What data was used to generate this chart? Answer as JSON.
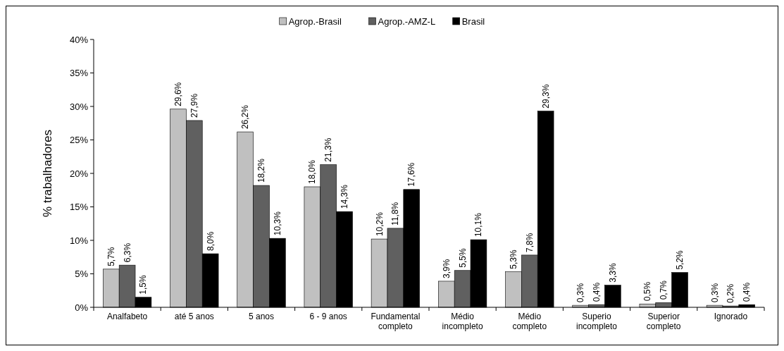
{
  "chart_data": {
    "type": "bar",
    "ylabel": "% trabalhadores",
    "categories": [
      "Analfabeto",
      "até 5 anos",
      "5 anos",
      "6 - 9 anos",
      "Fundamental completo",
      "Médio incompleto",
      "Médio completo",
      "Superio incompleto",
      "Superior completo",
      "Ignorado"
    ],
    "series": [
      {
        "name": "Agrop.-Brasil",
        "color": "#c0c0c0",
        "values": [
          5.7,
          29.6,
          26.2,
          18.0,
          10.2,
          3.9,
          5.3,
          0.3,
          0.5,
          0.3
        ],
        "value_labels": [
          "5,7%",
          "29,6%",
          "26,2%",
          "18,0%",
          "10,2%",
          "3,9%",
          "5,3%",
          "0,3%",
          "0,5%",
          "0,3%"
        ]
      },
      {
        "name": "Agrop.-AMZ-L",
        "color": "#606060",
        "values": [
          6.3,
          27.9,
          18.2,
          21.3,
          11.8,
          5.5,
          7.8,
          0.4,
          0.7,
          0.2
        ],
        "value_labels": [
          "6,3%",
          "27,9%",
          "18,2%",
          "21,3%",
          "11,8%",
          "5,5%",
          "7,8%",
          "0,4%",
          "0,7%",
          "0,2%"
        ]
      },
      {
        "name": "Brasil",
        "color": "#000000",
        "values": [
          1.5,
          8.0,
          10.3,
          14.3,
          17.6,
          10.1,
          29.3,
          3.3,
          5.2,
          0.4
        ],
        "value_labels": [
          "1,5%",
          "8,0%",
          "10,3%",
          "14,3%",
          "17,6%",
          "10,1%",
          "29,3%",
          "3,3%",
          "5,2%",
          "0,4%"
        ]
      }
    ],
    "ylim": [
      0,
      40
    ],
    "yticks": [
      {
        "value": 0,
        "label": "0%"
      },
      {
        "value": 5,
        "label": "5%"
      },
      {
        "value": 10,
        "label": "10%"
      },
      {
        "value": 15,
        "label": "15%"
      },
      {
        "value": 20,
        "label": "20%"
      },
      {
        "value": 25,
        "label": "25%"
      },
      {
        "value": 30,
        "label": "30%"
      },
      {
        "value": 35,
        "label": "35%"
      },
      {
        "value": 40,
        "label": "40%"
      }
    ],
    "grid": false,
    "legend": "top"
  }
}
